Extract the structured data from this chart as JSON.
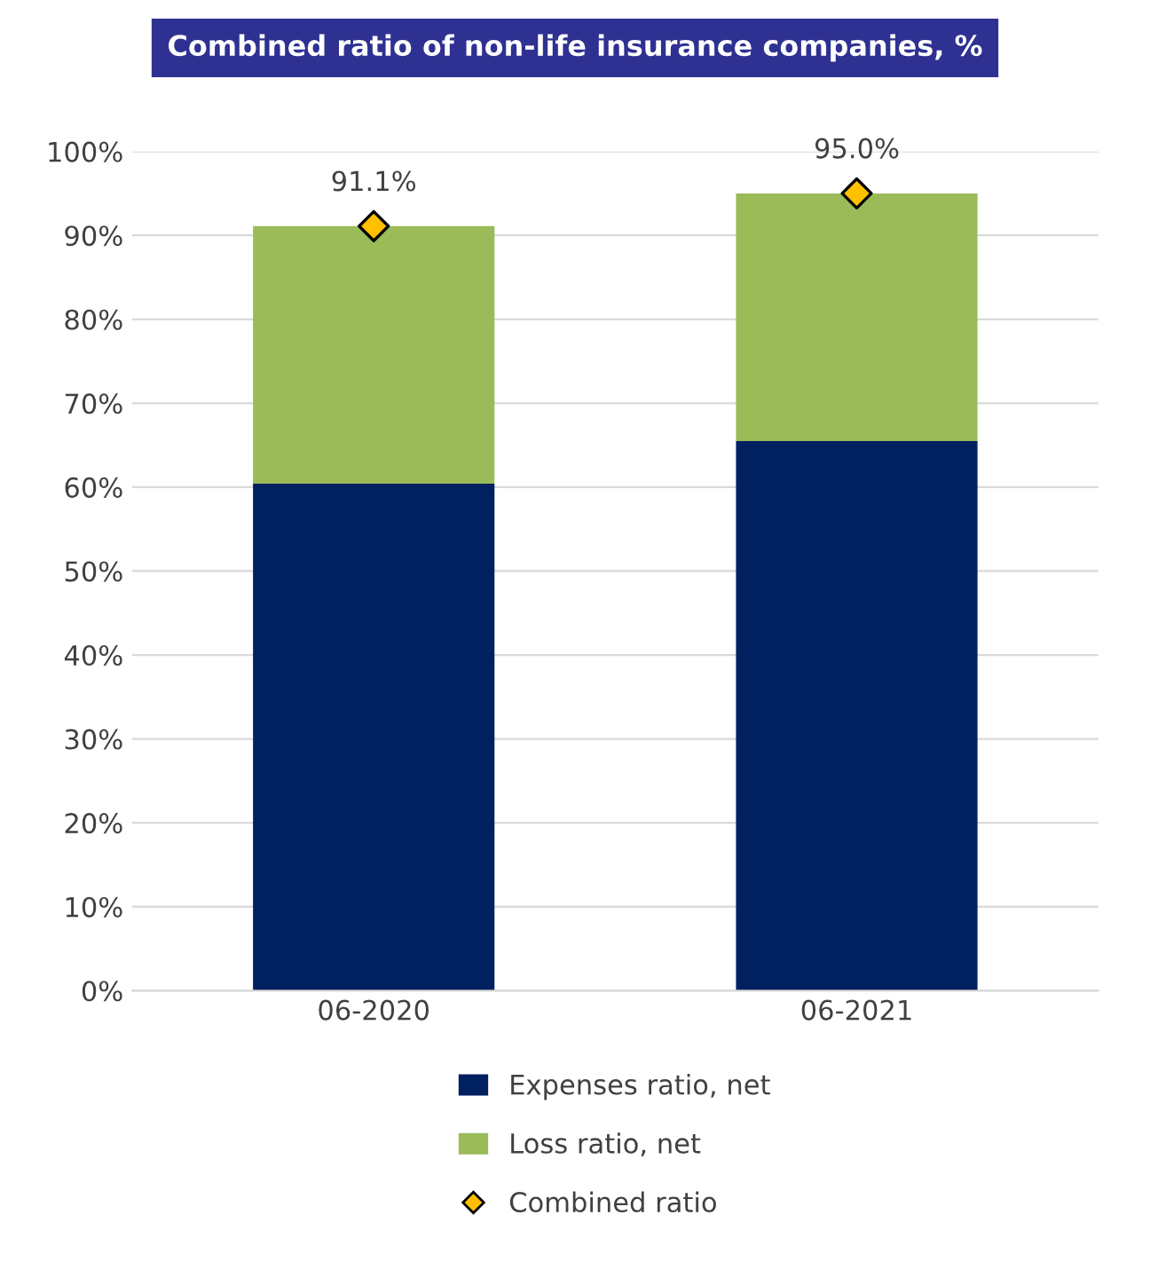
{
  "chart_data": {
    "type": "bar",
    "title": "Combined ratio of non-life insurance companies, %",
    "categories": [
      "06-2020",
      "06-2021"
    ],
    "stacked": true,
    "series": [
      {
        "name": "Expenses ratio, net",
        "color": "#002060",
        "values": [
          60.4,
          65.5
        ]
      },
      {
        "name": "Loss ratio, net",
        "color": "#9bbb59",
        "values": [
          30.7,
          29.5
        ]
      },
      {
        "name": "Combined ratio",
        "type": "scatter",
        "color": "#ffc000",
        "marker": "diamond",
        "values": [
          91.1,
          95.0
        ],
        "value_labels": [
          "91.1%",
          "95.0%"
        ]
      }
    ],
    "ylim": [
      0,
      100
    ],
    "yticks": [
      {
        "value": 0,
        "label": "0%"
      },
      {
        "value": 10,
        "label": "10%"
      },
      {
        "value": 20,
        "label": "20%"
      },
      {
        "value": 30,
        "label": "30%"
      },
      {
        "value": 40,
        "label": "40%"
      },
      {
        "value": 50,
        "label": "50%"
      },
      {
        "value": 60,
        "label": "60%"
      },
      {
        "value": 70,
        "label": "70%"
      },
      {
        "value": 80,
        "label": "80%"
      },
      {
        "value": 90,
        "label": "90%"
      },
      {
        "value": 100,
        "label": "100%"
      }
    ],
    "grid": "y",
    "legend": "bottom"
  }
}
